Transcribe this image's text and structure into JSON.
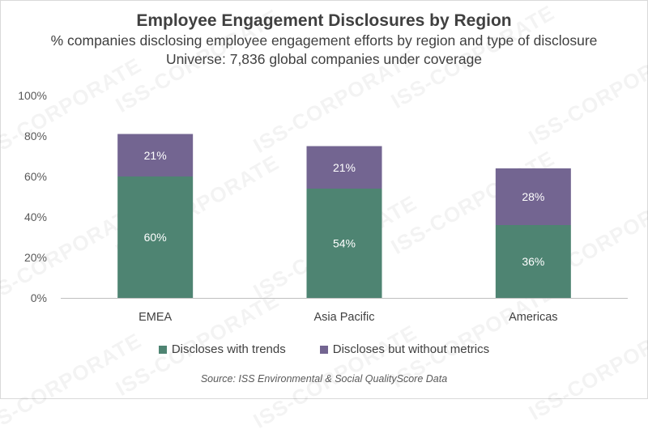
{
  "chart_data": {
    "type": "bar",
    "stacked": true,
    "title": "Employee Engagement Disclosures by Region",
    "subtitle": "% companies disclosing employee engagement efforts by region and type of disclosure",
    "subtitle2": "Universe: 7,836 global companies under coverage",
    "categories": [
      "EMEA",
      "Asia Pacific",
      "Americas"
    ],
    "series": [
      {
        "name": "Discloses with trends",
        "values": [
          60,
          54,
          36
        ],
        "labels": [
          "60%",
          "54%",
          "36%"
        ],
        "color": "#4e8472"
      },
      {
        "name": "Discloses but without metrics",
        "values": [
          21,
          21,
          28
        ],
        "labels": [
          "21%",
          "21%",
          "28%"
        ],
        "color": "#736591"
      }
    ],
    "ylim": [
      0,
      100
    ],
    "yticks": [
      0,
      20,
      40,
      60,
      80,
      100
    ],
    "ytick_labels": [
      "0%",
      "20%",
      "40%",
      "60%",
      "80%",
      "100%"
    ],
    "xlabel": "",
    "ylabel": "",
    "legend_position": "bottom",
    "grid": false,
    "source": "Source: ISS Environmental & Social QualityScore Data"
  },
  "watermark_text": "ISS-CORPORATE"
}
